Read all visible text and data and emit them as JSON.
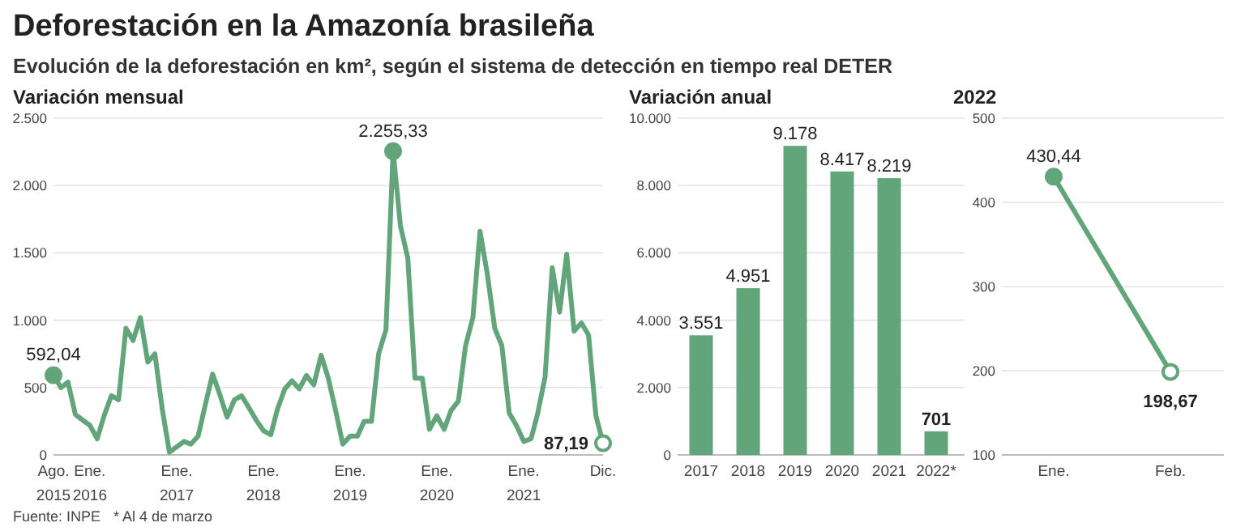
{
  "chart_data": [
    {
      "type": "other",
      "title": "Deforestación en la Amazonía brasileña",
      "subtitle": "Evolución de la deforestación en km², según el sistema de detección en tiempo real DETER",
      "annotations": [
        "Fuente: INPE",
        "* Al 4 de marzo"
      ]
    },
    {
      "type": "line",
      "title": "Variación mensual",
      "color": "#62a57b",
      "grid": "y",
      "x": [
        "2015-08",
        "2015-09",
        "2015-10",
        "2015-11",
        "2015-12",
        "2016-01",
        "2016-02",
        "2016-03",
        "2016-04",
        "2016-05",
        "2016-06",
        "2016-07",
        "2016-08",
        "2016-09",
        "2016-10",
        "2016-11",
        "2016-12",
        "2017-01",
        "2017-02",
        "2017-03",
        "2017-04",
        "2017-05",
        "2017-06",
        "2017-07",
        "2017-08",
        "2017-09",
        "2017-10",
        "2017-11",
        "2017-12",
        "2018-01",
        "2018-02",
        "2018-03",
        "2018-04",
        "2018-05",
        "2018-06",
        "2018-07",
        "2018-08",
        "2018-09",
        "2018-10",
        "2018-11",
        "2018-12",
        "2019-01",
        "2019-02",
        "2019-03",
        "2019-04",
        "2019-05",
        "2019-06",
        "2019-07",
        "2019-08",
        "2019-09",
        "2019-10",
        "2019-11",
        "2019-12",
        "2020-01",
        "2020-02",
        "2020-03",
        "2020-04",
        "2020-05",
        "2020-06",
        "2020-07",
        "2020-08",
        "2020-09",
        "2020-10",
        "2020-11",
        "2020-12",
        "2021-01",
        "2021-02",
        "2021-03",
        "2021-04",
        "2021-05",
        "2021-06",
        "2021-07",
        "2021-08",
        "2021-09",
        "2021-10",
        "2021-11",
        "2021-12"
      ],
      "values": [
        592.04,
        500,
        540,
        300,
        260,
        220,
        120,
        290,
        440,
        410,
        940,
        850,
        1020,
        690,
        750,
        340,
        20,
        60,
        100,
        80,
        140,
        370,
        600,
        450,
        280,
        410,
        440,
        350,
        260,
        180,
        150,
        340,
        490,
        550,
        490,
        590,
        520,
        740,
        570,
        330,
        80,
        140,
        140,
        250,
        250,
        750,
        930,
        2255.33,
        1700,
        1460,
        570,
        570,
        190,
        290,
        190,
        330,
        400,
        810,
        1020,
        1660,
        1340,
        940,
        810,
        310,
        220,
        100,
        120,
        310,
        580,
        1390,
        1060,
        1490,
        920,
        980,
        890,
        290,
        87.19
      ],
      "value_labels": [
        "592,04",
        null,
        null,
        null,
        null,
        null,
        null,
        null,
        null,
        null,
        null,
        null,
        null,
        null,
        null,
        null,
        null,
        null,
        null,
        null,
        null,
        null,
        null,
        null,
        null,
        null,
        null,
        null,
        null,
        null,
        null,
        null,
        null,
        null,
        null,
        null,
        null,
        null,
        null,
        null,
        null,
        null,
        null,
        null,
        null,
        null,
        null,
        "2.255,33",
        null,
        null,
        null,
        null,
        null,
        null,
        null,
        null,
        null,
        null,
        null,
        null,
        null,
        null,
        null,
        null,
        null,
        null,
        null,
        null,
        null,
        null,
        null,
        null,
        null,
        null,
        null,
        null,
        "87,19"
      ],
      "xlim": [
        "2015-08",
        "2021-12"
      ],
      "xticks": [
        {
          "value": "2015-08",
          "label": "Ago.\n2015"
        },
        {
          "value": "2016-01",
          "label": "Ene.\n2016"
        },
        {
          "value": "2017-01",
          "label": "Ene.\n2017"
        },
        {
          "value": "2018-01",
          "label": "Ene.\n2018"
        },
        {
          "value": "2019-01",
          "label": "Ene.\n2019"
        },
        {
          "value": "2020-01",
          "label": "Ene.\n2020"
        },
        {
          "value": "2021-01",
          "label": "Ene.\n2021"
        },
        {
          "value": "2021-12",
          "label": "Dic."
        }
      ],
      "ylim": [
        0,
        2500
      ],
      "yticks": [
        0,
        500,
        {
          "value": 1000,
          "label": "1.000"
        },
        {
          "value": 1500,
          "label": "1.500"
        },
        {
          "value": 2000,
          "label": "2.000"
        },
        {
          "value": 2500,
          "label": "2.500"
        }
      ]
    },
    {
      "type": "bar",
      "title": "Variación anual",
      "color": "#62a57b",
      "grid": "y",
      "categories": [
        "2017",
        "2018",
        "2019",
        "2020",
        "2021",
        "2022*"
      ],
      "values": [
        3551,
        4951,
        9178,
        8417,
        8219,
        701
      ],
      "value_labels": [
        "3.551",
        "4.951",
        "9.178",
        "8.417",
        "8.219",
        "701"
      ],
      "ylim": [
        0,
        10000
      ],
      "yticks": [
        0,
        {
          "value": 2000,
          "label": "2.000"
        },
        {
          "value": 4000,
          "label": "4.000"
        },
        {
          "value": 6000,
          "label": "6.000"
        },
        {
          "value": 8000,
          "label": "8.000"
        },
        {
          "value": 10000,
          "label": "10.000"
        }
      ]
    },
    {
      "type": "line",
      "title": "2022",
      "color": "#62a57b",
      "marker": "circle",
      "grid": "y",
      "categories": [
        "Ene.",
        "Feb."
      ],
      "values": [
        430.44,
        198.67
      ],
      "value_labels": [
        "430,44",
        "198,67"
      ],
      "ylim": [
        100,
        500
      ],
      "yticks": [
        100,
        200,
        300,
        400,
        500
      ]
    }
  ]
}
